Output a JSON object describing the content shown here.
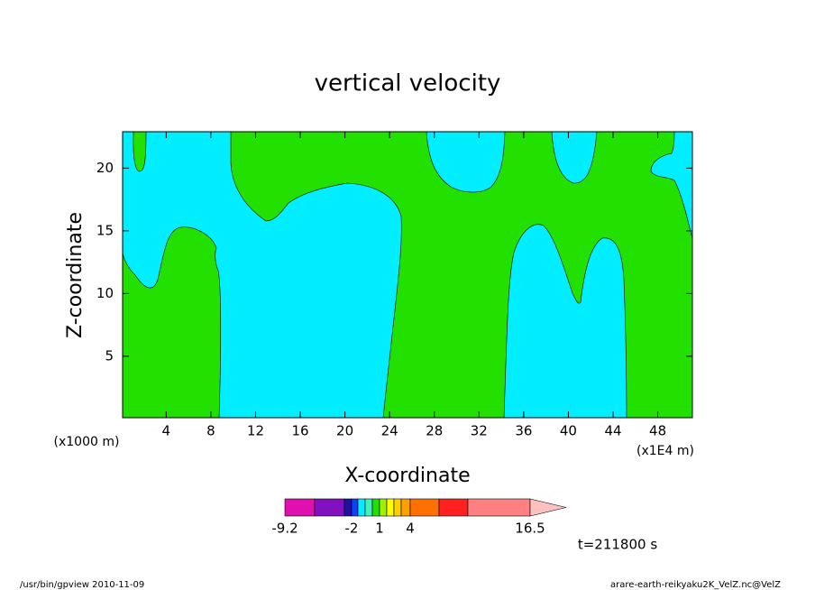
{
  "chart_data": {
    "type": "contour",
    "title": "vertical velocity",
    "xlabel": "X-coordinate",
    "ylabel": "Z-coordinate",
    "x_unit": "(x1E4 m)",
    "y_unit": "(x1000 m)",
    "xlim": [
      0.1,
      51.1
    ],
    "ylim": [
      0.1,
      22.9
    ],
    "xticks": [
      4,
      8,
      12,
      16,
      20,
      24,
      28,
      32,
      36,
      40,
      44,
      48
    ],
    "yticks": [
      5,
      10,
      15,
      20
    ],
    "colorbar": {
      "colors": [
        "#e010b0",
        "#8010c0",
        "#2010a0",
        "#1040ff",
        "#00eeff",
        "#40f0c0",
        "#22e000",
        "#a0f000",
        "#ffff00",
        "#ffd000",
        "#ffa000",
        "#ff7000",
        "#ff2020",
        "#ff8080",
        "#ffc0c0"
      ],
      "labels": [
        -9.2,
        -2,
        1,
        4,
        16.5
      ]
    },
    "annotation": "t=211800 s"
  },
  "footer": {
    "left": "/usr/bin/gpview   2010-11-09",
    "right": "arare-earth-reikyaku2K_VelZ.nc@VelZ"
  }
}
